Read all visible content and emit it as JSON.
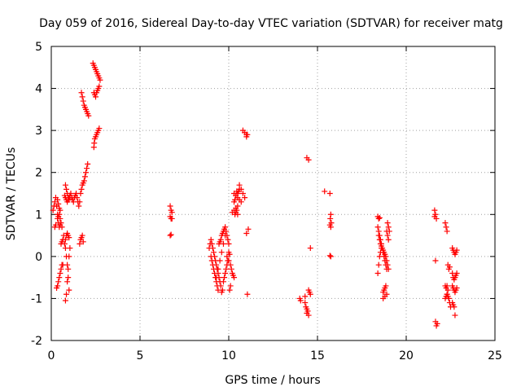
{
  "chart_data": {
    "type": "scatter",
    "title": "Day 059 of 2016, Sidereal Day-to-day VTEC variation (SDTVAR) for receiver matg",
    "xlabel": "GPS time / hours",
    "ylabel": "SDTVAR / TECUs",
    "xlim": [
      0,
      25
    ],
    "ylim": [
      -2,
      5
    ],
    "xticks": [
      0,
      5,
      10,
      15,
      20,
      25
    ],
    "yticks": [
      -2,
      -1,
      0,
      1,
      2,
      3,
      4,
      5
    ],
    "grid": true,
    "marker": "+",
    "color": "#ff0000",
    "series": [
      {
        "name": "SDTVAR",
        "x": [
          0.1,
          0.15,
          0.2,
          0.25,
          0.3,
          0.35,
          0.4,
          0.45,
          0.5,
          0.2,
          0.25,
          0.3,
          0.35,
          0.4,
          0.45,
          0.5,
          0.35,
          0.4,
          0.45,
          0.5,
          0.55,
          0.6,
          0.3,
          0.35,
          0.4,
          0.45,
          0.5,
          0.55,
          0.6,
          0.65,
          0.55,
          0.6,
          0.65,
          0.7,
          0.75,
          0.8,
          0.85,
          0.9,
          0.95,
          1.0,
          0.8,
          0.85,
          0.9,
          0.95,
          1.0,
          1.05,
          0.8,
          0.85,
          0.9,
          0.95,
          1.0,
          0.8,
          0.85,
          0.9,
          0.95,
          1.0,
          1.05,
          0.75,
          0.8,
          0.85,
          0.9,
          0.95,
          1.0,
          1.05,
          1.1,
          1.15,
          1.2,
          1.25,
          1.3,
          1.35,
          1.4,
          1.45,
          1.5,
          1.55,
          1.6,
          1.65,
          1.7,
          1.75,
          1.8,
          1.85,
          1.9,
          1.95,
          2.0,
          2.05,
          1.6,
          1.65,
          1.7,
          1.75,
          1.8,
          1.7,
          1.75,
          1.8,
          1.85,
          1.9,
          1.95,
          2.0,
          2.05,
          2.1,
          2.4,
          2.42,
          2.45,
          2.5,
          2.55,
          2.6,
          2.65,
          2.7,
          2.4,
          2.45,
          2.5,
          2.55,
          2.6,
          2.65,
          2.7,
          2.35,
          2.4,
          2.45,
          2.5,
          2.55,
          2.6,
          2.65,
          2.7,
          2.75,
          6.7,
          6.75,
          6.8,
          6.7,
          6.75,
          6.8,
          6.7,
          6.75,
          8.9,
          8.95,
          9.0,
          9.05,
          9.1,
          9.15,
          9.2,
          9.25,
          9.3,
          9.35,
          9.4,
          9.45,
          9.5,
          9.55,
          9.6,
          9.65,
          9.7,
          9.75,
          9.8,
          9.85,
          9.9,
          9.95,
          10.0,
          10.05,
          9.0,
          9.05,
          9.1,
          9.15,
          9.2,
          9.25,
          9.3,
          9.35,
          9.4,
          9.45,
          9.5,
          9.55,
          9.6,
          9.65,
          9.7,
          9.75,
          9.8,
          9.85,
          9.9,
          9.95,
          10.0,
          10.05,
          10.1,
          9.3,
          9.4,
          9.5,
          9.6,
          9.7,
          9.8,
          9.9,
          10.0,
          10.1,
          10.15,
          10.2,
          10.25,
          10.3,
          10.35,
          10.4,
          10.45,
          10.5,
          10.2,
          10.3,
          10.4,
          10.5,
          10.6,
          10.7,
          10.8,
          10.9,
          10.3,
          10.35,
          10.4,
          10.45,
          10.5,
          10.55,
          10.6,
          10.3,
          10.4,
          10.5,
          10.6,
          10.7,
          10.8,
          10.9,
          11.0,
          11.0,
          11.05,
          11.1,
          11.0,
          11.05,
          14.0,
          14.05,
          14.3,
          14.35,
          14.4,
          14.45,
          14.5,
          14.55,
          14.6,
          14.3,
          14.4,
          14.5,
          14.6,
          14.4,
          14.5,
          15.4,
          15.7,
          15.75,
          15.7,
          15.75,
          15.7,
          15.75,
          15.72,
          15.78,
          18.4,
          18.45,
          18.5,
          18.55,
          18.6,
          18.65,
          18.7,
          18.75,
          18.8,
          18.85,
          18.9,
          18.95,
          19.0,
          19.05,
          18.45,
          18.5,
          18.55,
          18.6,
          18.65,
          18.7,
          18.75,
          18.8,
          18.85,
          18.9,
          18.95,
          19.0,
          18.4,
          18.45,
          18.5,
          18.55,
          18.6,
          18.7,
          18.8,
          18.9,
          18.7,
          18.75,
          18.8,
          18.85,
          18.9,
          18.95,
          19.0,
          18.4,
          18.45,
          18.5,
          21.6,
          21.65,
          21.7,
          21.75,
          21.65,
          21.6,
          21.65,
          21.7,
          22.2,
          22.25,
          22.3,
          22.35,
          22.4,
          22.45,
          22.2,
          22.25,
          22.3,
          22.35,
          22.4,
          22.45,
          22.5,
          22.3,
          22.35,
          22.4,
          22.6,
          22.65,
          22.7,
          22.75,
          22.8,
          22.85,
          22.6,
          22.65,
          22.7,
          22.75,
          22.8,
          22.85,
          22.6,
          22.65,
          22.7,
          22.75,
          22.8,
          22.85,
          22.6,
          22.65,
          22.7,
          22.75,
          22.2,
          22.25,
          22.3
        ],
        "y": [
          1.1,
          1.2,
          1.3,
          1.4,
          1.2,
          1.0,
          0.8,
          0.7,
          0.75,
          0.7,
          0.75,
          1.2,
          1.35,
          1.25,
          1.15,
          1.1,
          0.9,
          0.95,
          1.0,
          0.9,
          0.8,
          0.7,
          -0.75,
          -0.7,
          -0.6,
          -0.5,
          -0.4,
          -0.3,
          -0.2,
          -0.2,
          0.3,
          0.35,
          0.4,
          0.5,
          0.3,
          0.2,
          0.0,
          -0.2,
          -0.5,
          -0.8,
          -1.05,
          -0.9,
          -0.6,
          -0.3,
          0.0,
          0.2,
          0.4,
          0.5,
          0.55,
          0.5,
          0.45,
          1.7,
          1.6,
          1.5,
          1.4,
          1.35,
          1.4,
          1.45,
          1.4,
          1.35,
          1.3,
          1.35,
          1.4,
          1.45,
          1.5,
          1.4,
          1.35,
          1.3,
          1.4,
          1.45,
          1.5,
          1.4,
          1.3,
          1.2,
          1.3,
          1.5,
          1.6,
          1.7,
          1.75,
          1.8,
          1.9,
          2.0,
          2.1,
          2.2,
          0.3,
          0.4,
          0.45,
          0.5,
          0.35,
          3.9,
          3.8,
          3.7,
          3.6,
          3.55,
          3.5,
          3.45,
          3.4,
          3.35,
          2.6,
          2.7,
          2.8,
          2.85,
          2.9,
          2.95,
          3.0,
          3.05,
          3.9,
          3.85,
          3.8,
          3.9,
          3.95,
          4.0,
          4.05,
          4.6,
          4.55,
          4.5,
          4.45,
          4.4,
          4.35,
          4.3,
          4.25,
          4.2,
          1.2,
          1.1,
          1.05,
          0.95,
          0.9,
          0.9,
          0.5,
          0.52,
          0.2,
          0.3,
          0.4,
          0.3,
          0.2,
          0.1,
          0.0,
          -0.1,
          -0.2,
          -0.3,
          -0.4,
          -0.5,
          -0.6,
          -0.7,
          -0.85,
          -0.8,
          -0.6,
          -0.5,
          -0.4,
          -0.3,
          -0.2,
          -0.1,
          0.1,
          0.05,
          0.0,
          -0.1,
          -0.2,
          -0.3,
          -0.4,
          -0.5,
          -0.6,
          -0.7,
          -0.8,
          0.3,
          0.35,
          0.4,
          0.5,
          0.55,
          0.6,
          0.65,
          0.7,
          0.6,
          0.5,
          0.4,
          0.3,
          -0.8,
          -0.7,
          -0.5,
          -0.3,
          -0.1,
          0.1,
          0.3,
          0.5,
          0.0,
          -0.1,
          -0.2,
          -0.3,
          -0.4,
          -0.45,
          -0.5,
          1.0,
          1.05,
          1.1,
          1.0,
          1.05,
          1.1,
          1.15,
          1.2,
          1.7,
          1.6,
          1.5,
          1.4,
          1.3,
          1.35,
          1.45,
          1.55,
          1.5,
          1.55,
          1.6,
          1.5,
          1.45,
          1.4,
          1.35,
          1.3,
          3.0,
          2.95,
          2.9,
          2.85,
          2.9,
          0.65,
          0.55,
          -0.9,
          -1.0,
          -1.05,
          -1.1,
          -1.2,
          -1.25,
          -1.3,
          -0.8,
          -0.85,
          -0.9,
          -0.95,
          -1.35,
          -1.4,
          0.2,
          2.35,
          2.3,
          1.55,
          1.5,
          0.7,
          0.75,
          0.0,
          0.02,
          1.0,
          0.9,
          0.8,
          0.7,
          0.6,
          0.5,
          0.4,
          0.3,
          0.2,
          0.1,
          0.0,
          -0.1,
          -0.2,
          -0.3,
          0.8,
          0.7,
          0.6,
          0.5,
          0.4,
          0.3,
          0.25,
          0.2,
          0.15,
          0.1,
          0.05,
          0.0,
          -0.1,
          -0.2,
          -0.3,
          -0.4,
          -0.2,
          0.0,
          0.1,
          0.2,
          -1.0,
          -0.95,
          -0.9,
          -0.85,
          -0.8,
          -0.75,
          -0.7,
          0.6,
          0.5,
          0.4,
          0.95,
          0.9,
          0.92,
          0.95,
          -0.1,
          -1.65,
          -1.6,
          -1.55,
          1.1,
          1.0,
          0.9,
          0.8,
          0.7,
          0.6,
          -0.2,
          -0.3,
          -0.25,
          -0.7,
          -0.75,
          -0.7,
          -0.8,
          -1.0,
          -1.1,
          -1.2,
          -0.9,
          -0.95,
          -1.0,
          0.2,
          0.15,
          0.1,
          0.05,
          0.1,
          0.15,
          -0.4,
          -0.5,
          -0.55,
          -0.5,
          -0.45,
          -0.4,
          -0.7,
          -0.75,
          -0.8,
          -0.85,
          -0.8,
          -0.75,
          -1.1,
          -1.15,
          -1.2,
          -1.4,
          -1.0,
          -0.95,
          -0.9
        ]
      }
    ]
  }
}
